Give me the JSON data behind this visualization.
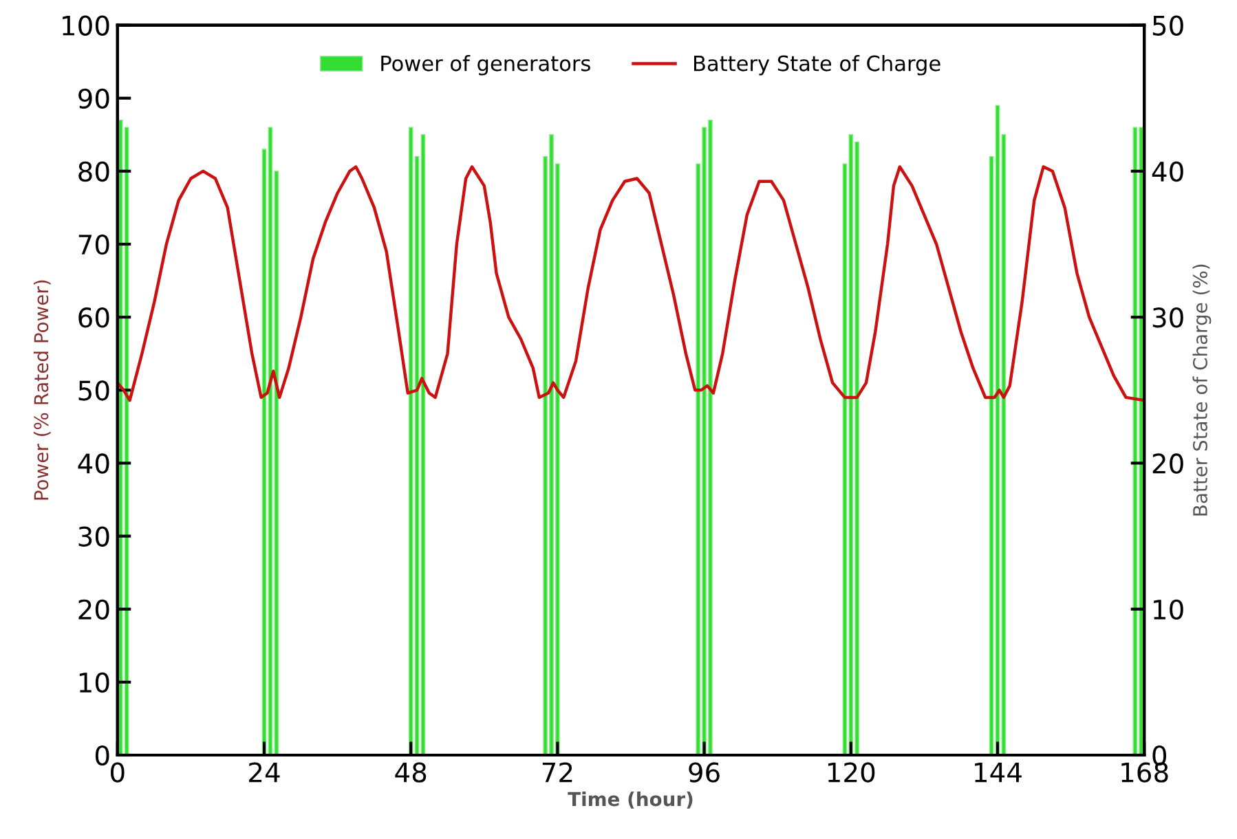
{
  "chart_data": {
    "type": "line",
    "xlabel": "Time (hour)",
    "ylabel": "Power (% Rated Power)",
    "y2label": "Batter State of Charge (%)",
    "xlim": [
      0,
      168
    ],
    "xticks": [
      0,
      24,
      48,
      72,
      96,
      120,
      144,
      168
    ],
    "ylim": [
      0,
      100
    ],
    "yticks": [
      0,
      10,
      20,
      30,
      40,
      50,
      60,
      70,
      80,
      90,
      100
    ],
    "y2lim": [
      0,
      50
    ],
    "y2ticks": [
      0,
      10,
      20,
      30,
      40,
      50
    ],
    "grid": false,
    "legend": "top",
    "series": [
      {
        "name": "Power of generators",
        "type": "bar",
        "color": "#33dd33",
        "x": [
          0.5,
          1.5,
          24,
          25,
          26,
          48,
          49,
          50,
          70,
          71,
          72,
          95,
          96,
          97,
          119,
          120,
          121,
          143,
          144,
          145,
          166.5,
          167.5
        ],
        "values": [
          87,
          86,
          83,
          86,
          80,
          86,
          82,
          85,
          82,
          85,
          81,
          81,
          86,
          87,
          81,
          85,
          84,
          82,
          89,
          85,
          86,
          86
        ]
      },
      {
        "name": "Battery State of Charge",
        "color": "#cc1111",
        "x": [
          0,
          1,
          2,
          4,
          6,
          8,
          10,
          12,
          14,
          16,
          18,
          20,
          22,
          23.5,
          24.5,
          25.5,
          26.5,
          28,
          30,
          32,
          34,
          36,
          38,
          39,
          40,
          42,
          44,
          46,
          47.5,
          49,
          49.8,
          51,
          52,
          54,
          55.5,
          57,
          58,
          60,
          61,
          62,
          64,
          66,
          68,
          69,
          70.5,
          71.3,
          72,
          73,
          75,
          77,
          79,
          81,
          83,
          85,
          87,
          89,
          91,
          93,
          94.5,
          95.5,
          96.5,
          97.5,
          99,
          101,
          103,
          105,
          107,
          109,
          111,
          113,
          115,
          117,
          119,
          121,
          122.5,
          124,
          126,
          127,
          128,
          130,
          132,
          134,
          136,
          138,
          140,
          142,
          143.5,
          144.3,
          145,
          146,
          148,
          150,
          151.5,
          153,
          155,
          157,
          159,
          161,
          163,
          165,
          168
        ],
        "values": [
          25.5,
          25,
          24.3,
          27.5,
          31,
          35,
          38,
          39.5,
          40,
          39.5,
          37.5,
          32.5,
          27.5,
          24.5,
          24.8,
          26.3,
          24.5,
          26.5,
          30,
          34,
          36.5,
          38.5,
          40,
          40.3,
          39.5,
          37.5,
          34.5,
          29,
          24.8,
          25,
          25.8,
          24.8,
          24.5,
          27.5,
          35,
          39.5,
          40.3,
          39,
          36.5,
          33,
          30,
          28.5,
          26.5,
          24.5,
          24.8,
          25.5,
          25,
          24.5,
          27,
          32,
          36,
          38,
          39.3,
          39.5,
          38.5,
          35,
          31.5,
          27.5,
          25,
          25,
          25.3,
          24.8,
          27.5,
          32.5,
          37,
          39.3,
          39.3,
          38,
          35,
          32,
          28.5,
          25.5,
          24.5,
          24.5,
          25.5,
          29,
          35,
          39,
          40.3,
          39,
          37,
          35,
          32,
          29,
          26.5,
          24.5,
          24.5,
          25,
          24.5,
          25.3,
          31,
          38,
          40.3,
          40,
          37.5,
          33,
          30,
          28,
          26,
          24.5,
          24.3
        ],
        "axis": "y2"
      }
    ]
  }
}
